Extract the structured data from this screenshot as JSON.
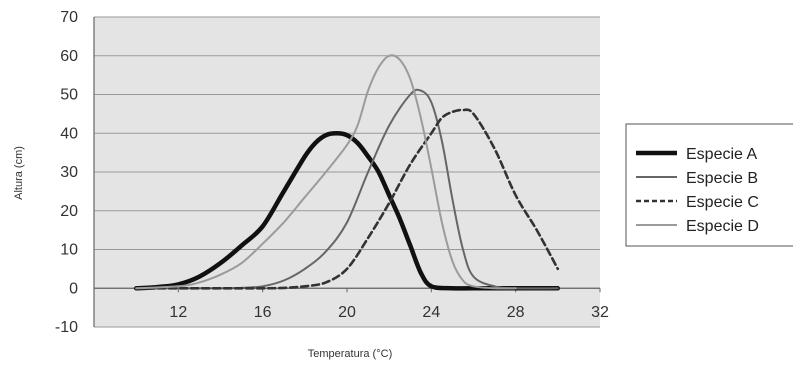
{
  "chart_data": {
    "type": "line",
    "title": "",
    "xlabel": "Temperatura (°C)",
    "ylabel": "Altura (cm)",
    "xlim": [
      8,
      32
    ],
    "ylim": [
      -10,
      70
    ],
    "x_ticks": [
      "12",
      "16",
      "20",
      "24",
      "28",
      "32"
    ],
    "x_tick_values": [
      12,
      16,
      20,
      24,
      28,
      32
    ],
    "y_ticks": [
      "70",
      "60",
      "50",
      "40",
      "30",
      "20",
      "10",
      "0",
      "-10"
    ],
    "y_tick_values": [
      70,
      60,
      50,
      40,
      30,
      20,
      10,
      0,
      -10
    ],
    "grid": true,
    "legend_position": "right",
    "plot_background": "#e4e4e4",
    "series": [
      {
        "name": "Especie A",
        "style": "thick-solid",
        "color": "#111111",
        "x": [
          10,
          11,
          12,
          13,
          14,
          15,
          16,
          17,
          18,
          18.5,
          19,
          19.5,
          20,
          20.5,
          21,
          21.5,
          22,
          22.5,
          23,
          23.5,
          24,
          25,
          26,
          28,
          30
        ],
        "y": [
          0,
          0.3,
          1,
          3,
          6.5,
          11,
          16,
          25,
          34,
          37.5,
          39.5,
          40,
          39.5,
          37.5,
          34,
          30,
          24,
          18,
          11,
          4,
          0.5,
          0,
          0,
          0,
          0
        ]
      },
      {
        "name": "Especie B",
        "style": "solid",
        "color": "#666666",
        "x": [
          10,
          12,
          14,
          15,
          16,
          17,
          18,
          19,
          20,
          21,
          22,
          23,
          23.5,
          24,
          24.5,
          25,
          25.5,
          26,
          27,
          28,
          30
        ],
        "y": [
          0,
          0,
          0,
          0.1,
          0.5,
          2,
          5,
          9.5,
          17,
          30,
          42,
          50,
          51,
          48,
          38,
          23,
          10,
          3,
          0.5,
          0,
          0
        ]
      },
      {
        "name": "Especie C",
        "style": "dashed",
        "color": "#333333",
        "x": [
          10,
          12,
          14,
          16,
          17,
          18,
          19,
          20,
          21,
          22,
          23,
          24,
          24.5,
          25,
          25.5,
          26,
          27,
          28,
          29,
          30
        ],
        "y": [
          0,
          0,
          0,
          0,
          0.1,
          0.5,
          1.5,
          5,
          13,
          22,
          32,
          40,
          44,
          45.5,
          46,
          45,
          36,
          24,
          15,
          5
        ]
      },
      {
        "name": "Especie D",
        "style": "solid",
        "color": "#9b9b9b",
        "x": [
          10,
          12,
          13,
          14,
          15,
          16,
          17,
          18,
          19,
          20,
          20.5,
          21,
          21.5,
          22,
          22.5,
          23,
          23.5,
          24,
          24.5,
          25,
          25.5,
          26,
          27,
          28
        ],
        "y": [
          0,
          0.5,
          1.5,
          3.5,
          6.5,
          11.5,
          17,
          23.5,
          30,
          37,
          42,
          51,
          57,
          60,
          59,
          54,
          44,
          31,
          17,
          7,
          2,
          0.5,
          0,
          0
        ]
      }
    ]
  }
}
